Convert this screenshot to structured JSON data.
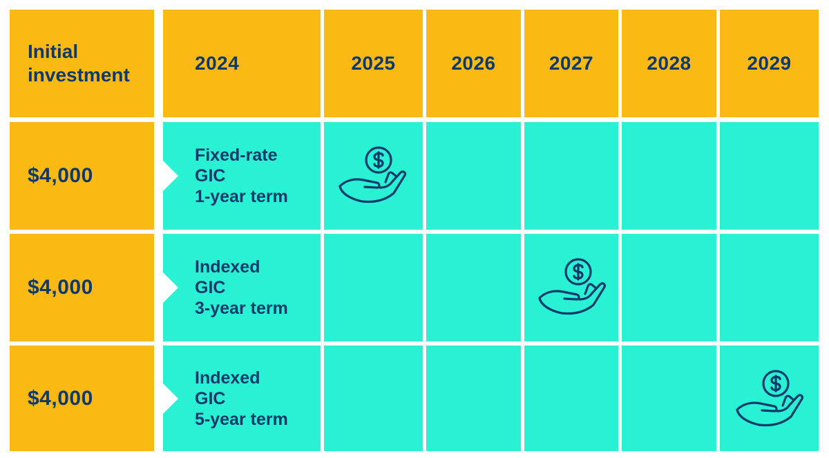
{
  "header": {
    "corner_line1": "Initial",
    "corner_line2": "investment",
    "years": [
      "2024",
      "2025",
      "2026",
      "2027",
      "2028",
      "2029"
    ]
  },
  "rows": [
    {
      "amount": "$4,000",
      "product_line1": "Fixed-rate",
      "product_line2": "GIC",
      "product_line3": "1-year term",
      "payout_year": "2025"
    },
    {
      "amount": "$4,000",
      "product_line1": "Indexed",
      "product_line2": "GIC",
      "product_line3": "3-year term",
      "payout_year": "2027"
    },
    {
      "amount": "$4,000",
      "product_line1": "Indexed",
      "product_line2": "GIC",
      "product_line3": "5-year term",
      "payout_year": "2029"
    }
  ],
  "icons": {
    "payout": "hand-holding-dollar-coin-icon"
  },
  "colors": {
    "header_bg": "#fbb914",
    "body_bg": "#29f2d4",
    "text": "#0e3a6b",
    "grid_lines": "#ffffff"
  }
}
